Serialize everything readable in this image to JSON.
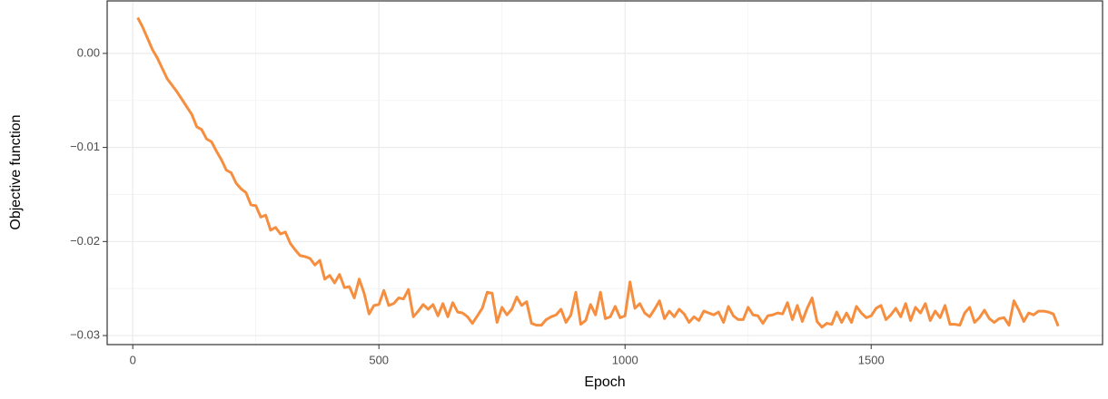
{
  "chart_data": {
    "type": "line",
    "xlabel": "Epoch",
    "ylabel": "Objective function",
    "xlim": [
      -52,
      1970
    ],
    "ylim": [
      -0.03096,
      0.00558
    ],
    "xticks": [
      0,
      500,
      1000,
      1500
    ],
    "yticks": [
      {
        "value": -0.03,
        "label": "−0.03"
      },
      {
        "value": -0.02,
        "label": "−0.02"
      },
      {
        "value": -0.01,
        "label": "−0.01"
      },
      {
        "value": 0,
        "label": "0.00"
      }
    ],
    "grid": true,
    "x": [
      10,
      20,
      30,
      40,
      50,
      60,
      70,
      80,
      90,
      100,
      110,
      120,
      130,
      140,
      150,
      160,
      170,
      180,
      190,
      200,
      210,
      220,
      230,
      240,
      250,
      260,
      270,
      280,
      290,
      300,
      310,
      320,
      330,
      340,
      350,
      360,
      370,
      380,
      390,
      400,
      410,
      420,
      430,
      440,
      450,
      460,
      470,
      480,
      490,
      500,
      510,
      520,
      530,
      540,
      550,
      560,
      570,
      580,
      590,
      600,
      610,
      620,
      630,
      640,
      650,
      660,
      670,
      680,
      690,
      700,
      710,
      720,
      730,
      740,
      750,
      760,
      770,
      780,
      790,
      800,
      810,
      820,
      830,
      840,
      850,
      860,
      870,
      880,
      890,
      900,
      910,
      920,
      930,
      940,
      950,
      960,
      970,
      980,
      990,
      1000,
      1010,
      1020,
      1030,
      1040,
      1050,
      1060,
      1070,
      1080,
      1090,
      1100,
      1110,
      1120,
      1130,
      1140,
      1150,
      1160,
      1170,
      1180,
      1190,
      1200,
      1210,
      1220,
      1230,
      1240,
      1250,
      1260,
      1270,
      1280,
      1290,
      1300,
      1310,
      1320,
      1330,
      1340,
      1350,
      1360,
      1370,
      1380,
      1390,
      1400,
      1410,
      1420,
      1430,
      1440,
      1450,
      1460,
      1470,
      1480,
      1490,
      1500,
      1510,
      1520,
      1530,
      1540,
      1550,
      1560,
      1570,
      1580,
      1590,
      1600,
      1610,
      1620,
      1630,
      1640,
      1650,
      1660,
      1670,
      1680,
      1690,
      1700,
      1710,
      1720,
      1730,
      1740,
      1750,
      1760,
      1770,
      1780,
      1790,
      1800,
      1810,
      1820,
      1830,
      1840,
      1850,
      1860,
      1870,
      1880
    ],
    "series": [
      {
        "color": "#f68e3f",
        "values": [
          0.0038,
          0.0028,
          0.0016,
          0.0004,
          -0.0005,
          -0.0016,
          -0.0027,
          -0.0034,
          -0.0041,
          -0.0049,
          -0.0057,
          -0.0065,
          -0.0078,
          -0.0081,
          -0.0091,
          -0.0094,
          -0.0104,
          -0.0113,
          -0.0124,
          -0.0127,
          -0.0138,
          -0.0144,
          -0.0148,
          -0.0161,
          -0.0162,
          -0.0174,
          -0.0172,
          -0.0188,
          -0.0185,
          -0.0192,
          -0.019,
          -0.0202,
          -0.0209,
          -0.0215,
          -0.0216,
          -0.0218,
          -0.0225,
          -0.022,
          -0.024,
          -0.0236,
          -0.0244,
          -0.0235,
          -0.0249,
          -0.0248,
          -0.026,
          -0.024,
          -0.0255,
          -0.0277,
          -0.0268,
          -0.0267,
          -0.0252,
          -0.0268,
          -0.0266,
          -0.026,
          -0.0261,
          -0.0251,
          -0.028,
          -0.0274,
          -0.0267,
          -0.0272,
          -0.0267,
          -0.0279,
          -0.0266,
          -0.028,
          -0.0265,
          -0.0275,
          -0.0276,
          -0.028,
          -0.0287,
          -0.0279,
          -0.0271,
          -0.0254,
          -0.0255,
          -0.0286,
          -0.027,
          -0.0278,
          -0.0272,
          -0.0259,
          -0.0268,
          -0.0264,
          -0.0287,
          -0.0289,
          -0.0289,
          -0.0283,
          -0.028,
          -0.0278,
          -0.0272,
          -0.0286,
          -0.0278,
          -0.0254,
          -0.0288,
          -0.0284,
          -0.0267,
          -0.0278,
          -0.0254,
          -0.0282,
          -0.028,
          -0.0269,
          -0.0281,
          -0.0279,
          -0.0243,
          -0.0271,
          -0.0266,
          -0.0276,
          -0.028,
          -0.0272,
          -0.0263,
          -0.0282,
          -0.0274,
          -0.028,
          -0.0272,
          -0.0277,
          -0.0286,
          -0.028,
          -0.0284,
          -0.0274,
          -0.0276,
          -0.0278,
          -0.0275,
          -0.0286,
          -0.0269,
          -0.0279,
          -0.0283,
          -0.0283,
          -0.027,
          -0.0278,
          -0.0279,
          -0.0287,
          -0.0279,
          -0.0278,
          -0.0276,
          -0.0277,
          -0.0265,
          -0.0283,
          -0.0268,
          -0.0285,
          -0.0271,
          -0.026,
          -0.0285,
          -0.0291,
          -0.0287,
          -0.0288,
          -0.0275,
          -0.0286,
          -0.0276,
          -0.0286,
          -0.0269,
          -0.0276,
          -0.0281,
          -0.0279,
          -0.0271,
          -0.0268,
          -0.0283,
          -0.0278,
          -0.0271,
          -0.028,
          -0.0266,
          -0.0284,
          -0.027,
          -0.0276,
          -0.0266,
          -0.0284,
          -0.0274,
          -0.0281,
          -0.0268,
          -0.0288,
          -0.0288,
          -0.0289,
          -0.0276,
          -0.027,
          -0.0286,
          -0.0281,
          -0.0273,
          -0.0282,
          -0.0286,
          -0.0282,
          -0.0281,
          -0.0289,
          -0.0263,
          -0.0273,
          -0.0285,
          -0.0276,
          -0.0278,
          -0.0274,
          -0.0274,
          -0.0275,
          -0.0277,
          -0.029
        ]
      }
    ]
  }
}
